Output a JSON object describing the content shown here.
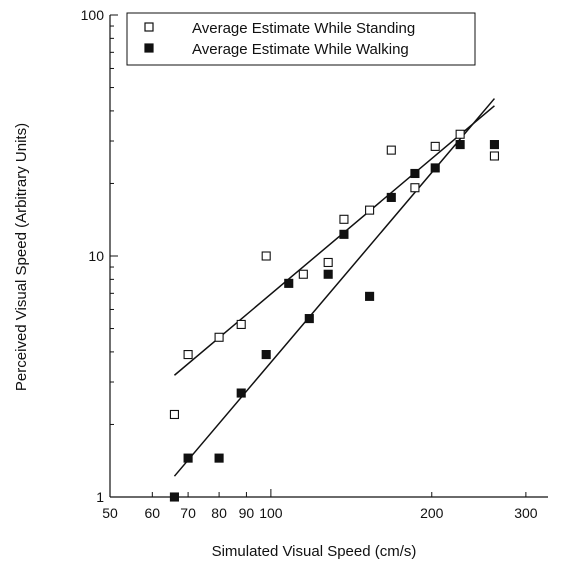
{
  "chart_data": {
    "type": "scatter",
    "title": "",
    "xlabel": "Simulated Visual Speed (cm/s)",
    "ylabel": "Perceived Visual Speed (Arbitrary Units)",
    "xscale": "log",
    "yscale": "log",
    "xlim": [
      50,
      330
    ],
    "ylim": [
      1,
      100
    ],
    "x_ticks": [
      50,
      60,
      70,
      80,
      90,
      100,
      200,
      300
    ],
    "x_tick_labels": [
      "50",
      "60",
      "70",
      "80",
      "90",
      "100",
      "200",
      "300"
    ],
    "y_ticks": [
      1,
      10,
      100
    ],
    "y_tick_labels": [
      "1",
      "10",
      "100"
    ],
    "grid": false,
    "legend_position": "top-left",
    "series": [
      {
        "name": "Average Estimate While Standing",
        "marker": "open-square",
        "color": "#111111",
        "points": [
          {
            "x": 66,
            "y": 2.2
          },
          {
            "x": 70,
            "y": 3.9
          },
          {
            "x": 80,
            "y": 4.6
          },
          {
            "x": 88,
            "y": 5.2
          },
          {
            "x": 98,
            "y": 10
          },
          {
            "x": 115,
            "y": 8.4
          },
          {
            "x": 128,
            "y": 9.4
          },
          {
            "x": 137,
            "y": 14.2
          },
          {
            "x": 153,
            "y": 15.5
          },
          {
            "x": 168,
            "y": 27.5
          },
          {
            "x": 186,
            "y": 19.2
          },
          {
            "x": 203,
            "y": 28.5
          },
          {
            "x": 226,
            "y": 32
          },
          {
            "x": 262,
            "y": 26
          }
        ],
        "fit_line": [
          {
            "x": 66,
            "y": 3.2
          },
          {
            "x": 262,
            "y": 42
          }
        ]
      },
      {
        "name": "Average Estimate While Walking",
        "marker": "filled-square",
        "color": "#111111",
        "points": [
          {
            "x": 66,
            "y": 1.0
          },
          {
            "x": 70,
            "y": 1.45
          },
          {
            "x": 80,
            "y": 1.45
          },
          {
            "x": 88,
            "y": 2.7
          },
          {
            "x": 98,
            "y": 3.9
          },
          {
            "x": 108,
            "y": 7.7
          },
          {
            "x": 118,
            "y": 5.5
          },
          {
            "x": 128,
            "y": 8.4
          },
          {
            "x": 137,
            "y": 12.3
          },
          {
            "x": 153,
            "y": 6.8
          },
          {
            "x": 168,
            "y": 17.5
          },
          {
            "x": 186,
            "y": 22
          },
          {
            "x": 203,
            "y": 23.2
          },
          {
            "x": 226,
            "y": 29
          },
          {
            "x": 262,
            "y": 29
          }
        ],
        "fit_line": [
          {
            "x": 66,
            "y": 1.22
          },
          {
            "x": 262,
            "y": 45
          }
        ]
      }
    ]
  }
}
